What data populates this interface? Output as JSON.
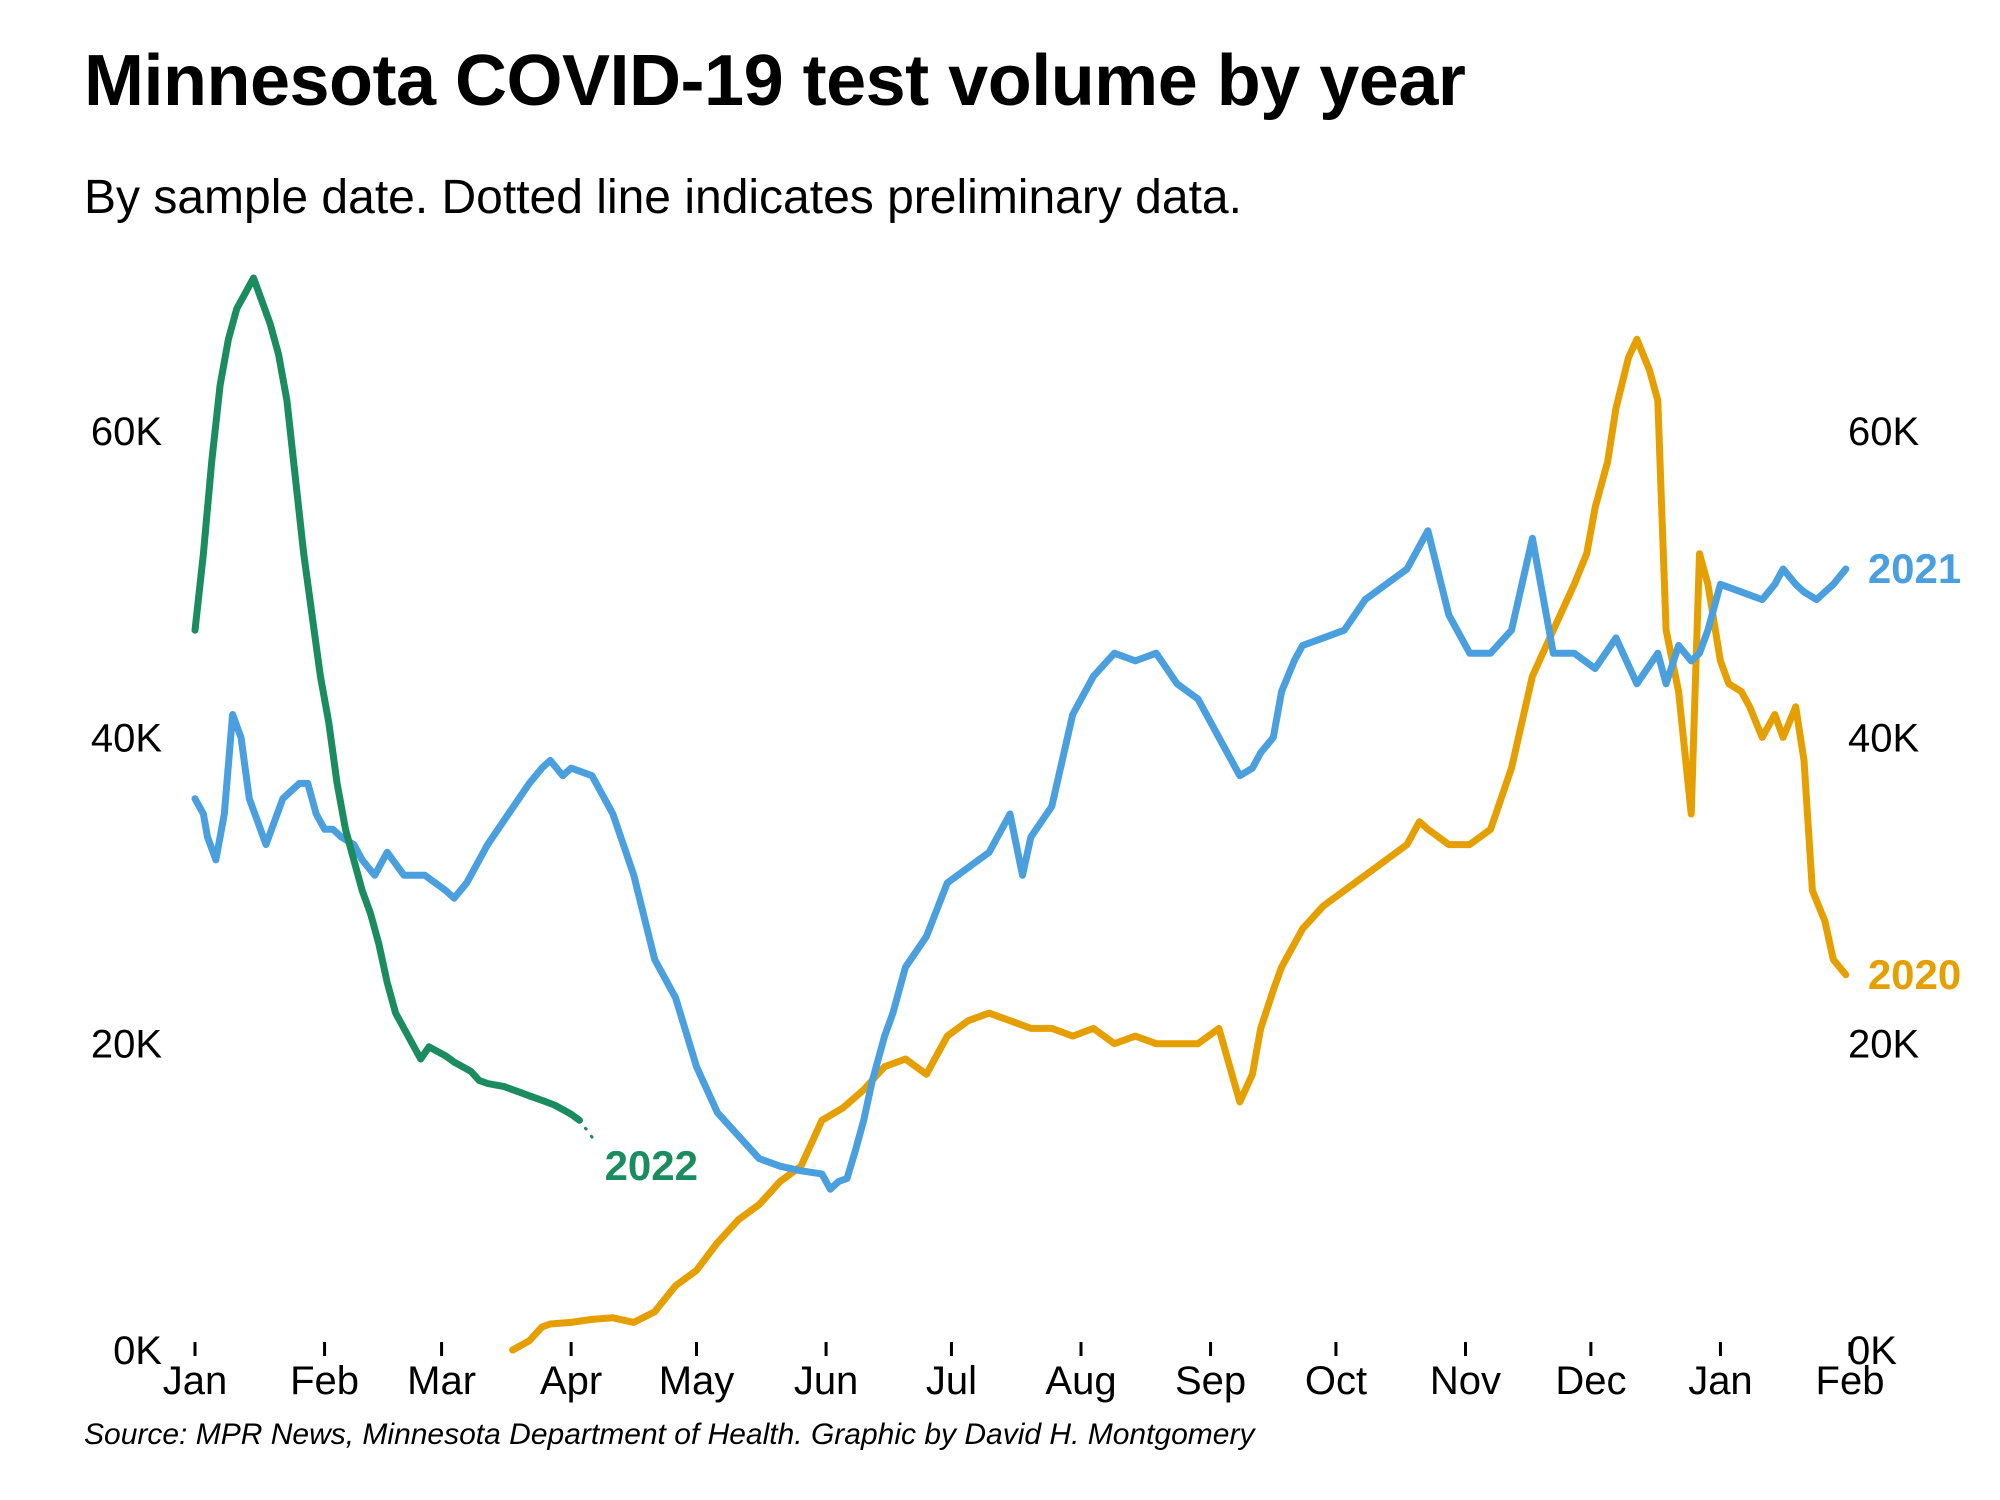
{
  "title": "Minnesota COVID-19 test volume by year",
  "subtitle": "By sample date. Dotted line indicates preliminary data.",
  "source": "Source: MPR News, Minnesota Department of Health. Graphic by David H. Montgomery",
  "chart_data": {
    "type": "line",
    "title": "Minnesota COVID-19 test volume by year",
    "xlabel": "",
    "ylabel": "",
    "x_tick_labels": [
      "Jan",
      "Feb",
      "Mar",
      "Apr",
      "May",
      "Jun",
      "Jul",
      "Aug",
      "Sep",
      "Oct",
      "Nov",
      "Dec",
      "Jan",
      "Feb"
    ],
    "xlim_days": [
      0,
      396
    ],
    "y_ticks": [
      0,
      20000,
      40000,
      60000
    ],
    "y_tick_labels": [
      "0K",
      "20K",
      "40K",
      "60K"
    ],
    "ylim": [
      0,
      70000
    ],
    "y_axis_left": true,
    "y_axis_right": true,
    "grid": false,
    "legend": "direct labels at line ends",
    "series": [
      {
        "name": "2020",
        "color": "#e69f00",
        "style": "solid",
        "x_day": [
          76,
          80,
          83,
          85,
          90,
          95,
          100,
          105,
          110,
          115,
          120,
          125,
          130,
          135,
          140,
          145,
          150,
          155,
          160,
          165,
          170,
          175,
          180,
          185,
          190,
          195,
          200,
          205,
          210,
          215,
          220,
          225,
          230,
          235,
          240,
          245,
          250,
          253,
          255,
          258,
          260,
          265,
          270,
          275,
          280,
          285,
          290,
          293,
          295,
          300,
          305,
          310,
          315,
          320,
          325,
          330,
          333,
          335,
          338,
          340,
          343,
          345,
          348,
          350,
          352,
          355,
          358,
          360,
          362,
          365,
          367,
          370,
          372,
          375,
          378,
          380,
          383,
          385,
          387,
          390,
          392,
          395
        ],
        "y": [
          0,
          600,
          1500,
          1700,
          1800,
          2000,
          2100,
          1800,
          2500,
          4200,
          5200,
          7000,
          8500,
          9500,
          11000,
          12000,
          15000,
          15800,
          17000,
          18500,
          19000,
          18000,
          20500,
          21500,
          22000,
          21500,
          21000,
          21000,
          20500,
          21000,
          20000,
          20500,
          20000,
          20000,
          20000,
          21000,
          16200,
          18000,
          21000,
          23500,
          25000,
          27500,
          29000,
          30000,
          31000,
          32000,
          33000,
          34500,
          34000,
          33000,
          33000,
          34000,
          38000,
          44000,
          47000,
          50000,
          52000,
          55000,
          58000,
          61500,
          64800,
          66000,
          64000,
          62000,
          47000,
          43000,
          35000,
          52000,
          50000,
          45000,
          43500,
          43000,
          42000,
          40000,
          41500,
          40000,
          42000,
          38500,
          30000,
          28000,
          25500,
          24500
        ],
        "label": "2020"
      },
      {
        "name": "2021",
        "color": "#4a9fdf",
        "style": "solid",
        "x_day": [
          0,
          2,
          3,
          5,
          7,
          9,
          11,
          13,
          15,
          17,
          19,
          21,
          23,
          25,
          27,
          29,
          31,
          33,
          35,
          38,
          40,
          43,
          46,
          50,
          55,
          60,
          62,
          65,
          70,
          75,
          80,
          83,
          85,
          88,
          90,
          95,
          100,
          105,
          110,
          115,
          120,
          125,
          130,
          135,
          140,
          145,
          150,
          152,
          154,
          156,
          158,
          160,
          162,
          165,
          167,
          170,
          175,
          180,
          185,
          190,
          195,
          198,
          200,
          205,
          210,
          215,
          220,
          225,
          230,
          235,
          240,
          245,
          250,
          253,
          255,
          258,
          260,
          263,
          265,
          270,
          275,
          280,
          285,
          290,
          295,
          300,
          305,
          310,
          315,
          320,
          325,
          330,
          335,
          340,
          345,
          350,
          352,
          355,
          358,
          360,
          362,
          365,
          370,
          375,
          378,
          380,
          383,
          385,
          388,
          390,
          392,
          395
        ],
        "y": [
          36000,
          35000,
          33500,
          32000,
          35000,
          41500,
          40000,
          36000,
          34500,
          33000,
          34500,
          36000,
          36500,
          37000,
          37000,
          35000,
          34000,
          34000,
          33500,
          33000,
          32000,
          31000,
          32500,
          31000,
          31000,
          30000,
          29500,
          30500,
          33000,
          35000,
          37000,
          38000,
          38500,
          37500,
          38000,
          37500,
          35000,
          31000,
          25500,
          23000,
          18500,
          15500,
          14000,
          12500,
          12000,
          11700,
          11500,
          10500,
          11000,
          11200,
          13000,
          15000,
          17500,
          20500,
          22000,
          25000,
          27000,
          30500,
          31500,
          32500,
          35000,
          31000,
          33500,
          35500,
          41500,
          44000,
          45500,
          45000,
          45500,
          43500,
          42500,
          40000,
          37500,
          38000,
          39000,
          40000,
          43000,
          45000,
          46000,
          46500,
          47000,
          49000,
          50000,
          51000,
          53500,
          48000,
          45500,
          45500,
          47000,
          53000,
          45500,
          45500,
          44500,
          46500,
          43500,
          45500,
          43500,
          46000,
          45000,
          45500,
          47000,
          50000,
          49500,
          49000,
          50000,
          51000,
          50000,
          49500,
          49000,
          49500,
          50000,
          51000
        ],
        "label": "2021"
      },
      {
        "name": "2022",
        "color": "#1a8c5f",
        "style": "solid",
        "x_day": [
          0,
          2,
          4,
          6,
          8,
          10,
          12,
          14,
          16,
          18,
          20,
          22,
          24,
          26,
          28,
          30,
          32,
          34,
          36,
          38,
          40,
          42,
          44,
          46,
          48,
          50,
          52,
          54,
          56,
          58,
          60,
          62,
          64,
          66,
          68,
          70,
          72,
          74,
          76,
          78,
          80,
          82,
          84,
          86,
          88,
          90,
          92
        ],
        "y": [
          47000,
          52000,
          58000,
          63000,
          66000,
          68000,
          69000,
          70000,
          68500,
          67000,
          65000,
          62000,
          57000,
          52000,
          48000,
          44000,
          41000,
          37000,
          34000,
          32000,
          30000,
          28500,
          26500,
          24000,
          22000,
          21000,
          20000,
          19000,
          19800,
          19500,
          19200,
          18800,
          18500,
          18200,
          17600,
          17400,
          17300,
          17200,
          17000,
          16800,
          16600,
          16400,
          16200,
          16000,
          15700,
          15400,
          15000
        ],
        "label": "2022"
      },
      {
        "name": "2022",
        "color": "#1a8c5f",
        "style": "dotted",
        "x_day": [
          92,
          93,
          94,
          95,
          96
        ],
        "y": [
          15000,
          14600,
          14300,
          13900,
          13400
        ]
      }
    ]
  }
}
